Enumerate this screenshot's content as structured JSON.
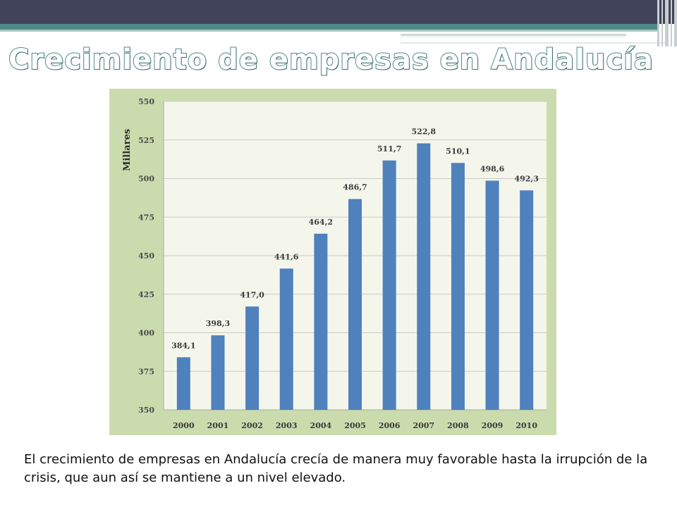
{
  "slide": {
    "title": "Crecimiento de empresas en Andalucía",
    "caption": "El crecimiento de empresas en Andalucía crecía de manera muy favorable hasta la irrupción de la crisis, que aun así se mantiene a un nivel elevado.",
    "colors": {
      "header_dark": "#41435a",
      "header_teal": "#4f8a86",
      "chart_background": "#cadcae",
      "plot_background": "#f4f6ec",
      "bar": "#4f81bd"
    }
  },
  "chart_data": {
    "type": "bar",
    "ylabel": "Millares",
    "categories": [
      "2000",
      "2001",
      "2002",
      "2003",
      "2004",
      "2005",
      "2006",
      "2007",
      "2008",
      "2009",
      "2010"
    ],
    "values": [
      384.1,
      398.3,
      417.0,
      441.6,
      464.2,
      486.7,
      511.7,
      522.8,
      510.1,
      498.6,
      492.3
    ],
    "value_labels": [
      "384,1",
      "398,3",
      "417,0",
      "441,6",
      "464,2",
      "486,7",
      "511,7",
      "522,8",
      "510,1",
      "498,6",
      "492,3"
    ],
    "ylim": [
      350,
      550
    ],
    "yticks": [
      350,
      375,
      400,
      425,
      450,
      475,
      500,
      525,
      550
    ],
    "grid": true,
    "legend": "none"
  }
}
